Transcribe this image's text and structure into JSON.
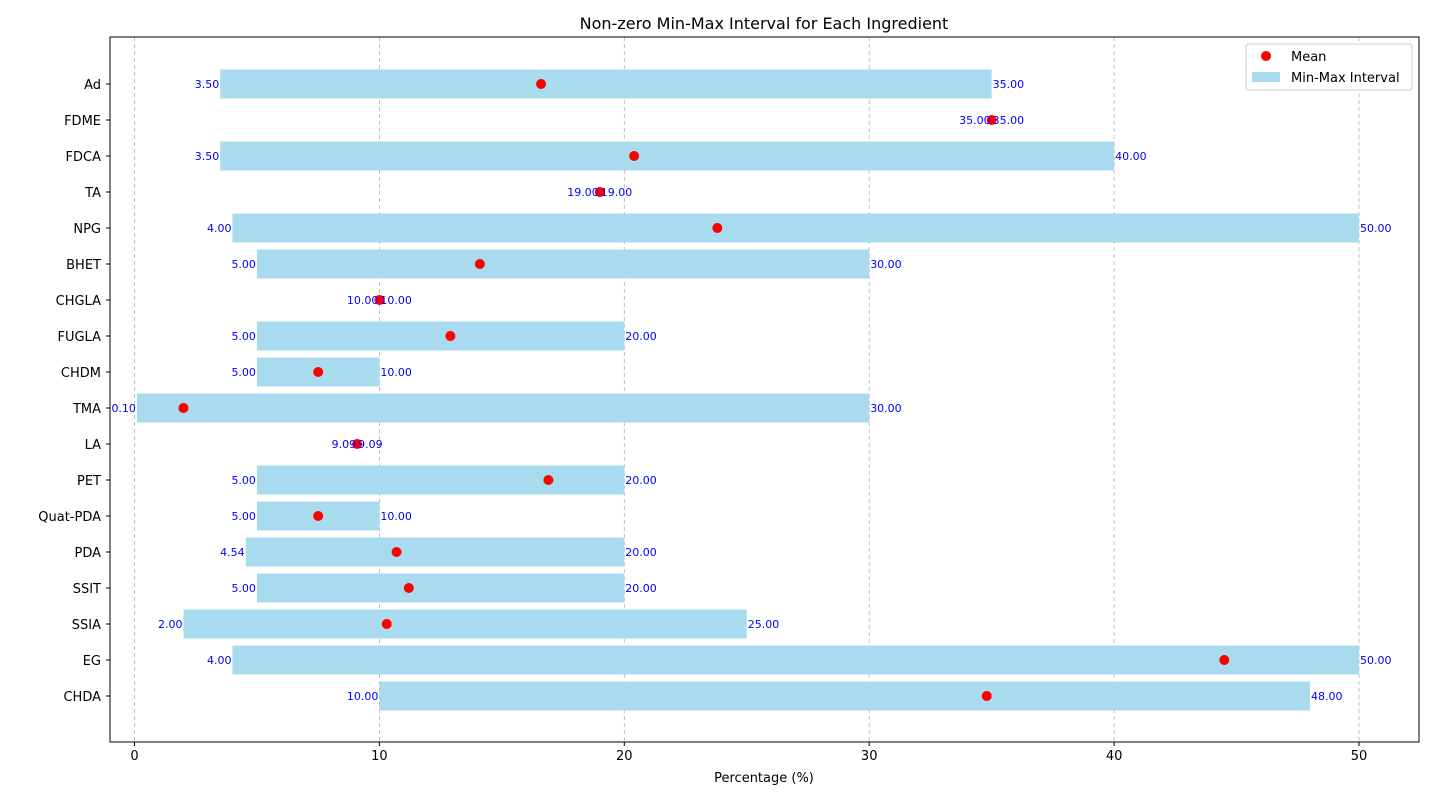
{
  "chart_data": {
    "type": "bar",
    "orientation": "horizontal-range",
    "title": "Non-zero Min-Max Interval for Each Ingredient",
    "xlabel": "Percentage (%)",
    "ylabel": "",
    "xlim": [
      -1,
      52.5
    ],
    "xticks": [
      0,
      10,
      20,
      30,
      40,
      50
    ],
    "grid": "x-dashed",
    "legend_placement": "top-right",
    "legend": [
      "Mean",
      "Min-Max Interval"
    ],
    "colors": {
      "interval": "#a8dbee",
      "mean": "#ff0000",
      "labels": "#0000ff"
    },
    "categories": [
      "Ad",
      "FDME",
      "FDCA",
      "TA",
      "NPG",
      "BHET",
      "CHGLA",
      "FUGLA",
      "CHDM",
      "TMA",
      "LA",
      "PET",
      "Quat-PDA",
      "PDA",
      "SSIT",
      "SSIA",
      "EG",
      "CHDA"
    ],
    "series": [
      {
        "name": "Min-Max Interval",
        "min": [
          3.5,
          35.0,
          3.5,
          19.0,
          4.0,
          5.0,
          10.0,
          5.0,
          5.0,
          0.1,
          9.09,
          5.0,
          5.0,
          4.54,
          5.0,
          2.0,
          4.0,
          10.0
        ],
        "max": [
          35.0,
          35.0,
          40.0,
          19.0,
          50.0,
          30.0,
          10.0,
          20.0,
          10.0,
          30.0,
          9.09,
          20.0,
          10.0,
          20.0,
          20.0,
          25.0,
          50.0,
          48.0
        ]
      },
      {
        "name": "Mean",
        "values": [
          16.6,
          35.0,
          20.4,
          19.0,
          23.8,
          14.1,
          10.0,
          12.9,
          7.5,
          2.0,
          9.09,
          16.9,
          7.5,
          10.7,
          11.2,
          10.3,
          44.5,
          34.8
        ]
      }
    ],
    "min_labels": [
      "3.50",
      "35.00",
      "3.50",
      "19.00",
      "4.00",
      "5.00",
      "10.00",
      "5.00",
      "5.00",
      "0.10",
      "9.09",
      "5.00",
      "5.00",
      "4.54",
      "5.00",
      "2.00",
      "4.00",
      "10.00"
    ],
    "max_labels": [
      "35.00",
      "35.00",
      "40.00",
      "19.00",
      "50.00",
      "30.00",
      "10.00",
      "20.00",
      "10.00",
      "30.00",
      "9.09",
      "20.00",
      "10.00",
      "20.00",
      "20.00",
      "25.00",
      "50.00",
      "48.00"
    ]
  }
}
